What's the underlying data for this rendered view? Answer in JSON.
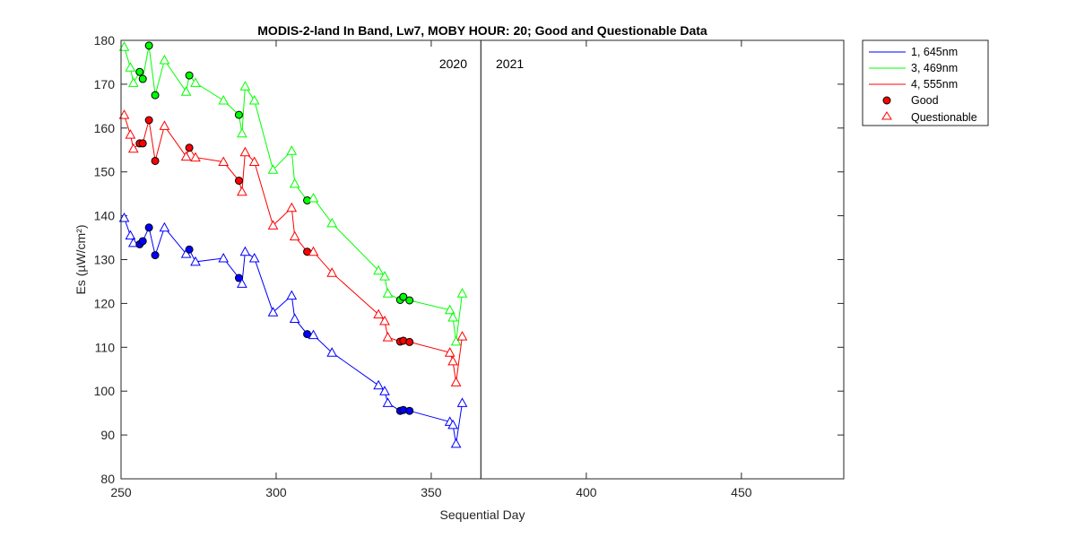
{
  "chart_data": {
    "type": "line",
    "title": "MODIS-2-land In Band,  Lw7, MOBY HOUR: 20;  Good and Questionable Data",
    "xlabel": "Sequential Day",
    "ylabel": "Es (µW/cm²)",
    "xlim": [
      250,
      483
    ],
    "ylim": [
      80,
      180
    ],
    "xticks": [
      250,
      300,
      350,
      400,
      450
    ],
    "yticks": [
      80,
      90,
      100,
      110,
      120,
      130,
      140,
      150,
      160,
      170,
      180
    ],
    "year_divider_x": 366,
    "year_labels": [
      "2020",
      "2021"
    ],
    "legend": {
      "location": "outside-top-right",
      "entries": [
        {
          "label": "1, 645nm",
          "kind": "line",
          "color": "#0000ff"
        },
        {
          "label": "3, 469nm",
          "kind": "line",
          "color": "#00ff00"
        },
        {
          "label": "4, 555nm",
          "kind": "line",
          "color": "#ff0000"
        },
        {
          "label": "Good",
          "kind": "filled-circle",
          "color": "#ff0000"
        },
        {
          "label": "Questionable",
          "kind": "open-triangle",
          "color": "#ff0000"
        }
      ]
    },
    "series": [
      {
        "name": "1, 645nm",
        "color": "#0000ff",
        "x": [
          251,
          253,
          254,
          256,
          257,
          259,
          261,
          264,
          271,
          272,
          274,
          283,
          288,
          289,
          290,
          293,
          299,
          305,
          306,
          310,
          312,
          318,
          333,
          335,
          336,
          340,
          341,
          343,
          356,
          357,
          358,
          360
        ],
        "y": [
          139.5,
          135.5,
          133.8,
          133.5,
          134.2,
          137.3,
          131.0,
          137.3,
          131.3,
          132.3,
          129.5,
          130.3,
          125.8,
          124.5,
          131.8,
          130.3,
          118.0,
          121.8,
          116.5,
          113.0,
          112.8,
          108.8,
          101.3,
          100.0,
          97.3,
          95.5,
          95.7,
          95.5,
          93.0,
          92.3,
          88.0,
          97.3
        ],
        "quality": [
          "q",
          "q",
          "q",
          "g",
          "g",
          "g",
          "g",
          "q",
          "q",
          "g",
          "q",
          "q",
          "g",
          "q",
          "q",
          "q",
          "q",
          "q",
          "q",
          "g",
          "q",
          "q",
          "q",
          "q",
          "q",
          "g",
          "g",
          "g",
          "q",
          "q",
          "q",
          "q"
        ]
      },
      {
        "name": "3, 469nm",
        "color": "#00ff00",
        "x": [
          251,
          253,
          254,
          256,
          257,
          259,
          261,
          264,
          271,
          272,
          274,
          283,
          288,
          289,
          290,
          293,
          299,
          305,
          306,
          310,
          312,
          318,
          333,
          335,
          336,
          340,
          341,
          343,
          356,
          357,
          358,
          360
        ],
        "y": [
          178.5,
          173.8,
          170.3,
          172.8,
          171.2,
          178.8,
          167.5,
          175.5,
          168.3,
          172.0,
          170.3,
          166.3,
          163.0,
          158.8,
          169.5,
          166.3,
          150.5,
          154.8,
          147.3,
          143.5,
          144.0,
          138.3,
          127.5,
          126.2,
          122.3,
          120.8,
          121.5,
          120.7,
          118.5,
          116.8,
          111.3,
          122.3
        ],
        "quality": [
          "q",
          "q",
          "q",
          "g",
          "g",
          "g",
          "g",
          "q",
          "q",
          "g",
          "q",
          "q",
          "g",
          "q",
          "q",
          "q",
          "q",
          "q",
          "q",
          "g",
          "q",
          "q",
          "q",
          "q",
          "q",
          "g",
          "g",
          "g",
          "q",
          "q",
          "q",
          "q"
        ]
      },
      {
        "name": "4, 555nm",
        "color": "#ff0000",
        "x": [
          251,
          253,
          254,
          256,
          257,
          259,
          261,
          264,
          271,
          272,
          274,
          283,
          288,
          289,
          290,
          293,
          299,
          305,
          306,
          310,
          312,
          318,
          333,
          335,
          336,
          340,
          341,
          343,
          356,
          357,
          358,
          360
        ],
        "y": [
          163.0,
          158.5,
          155.3,
          156.5,
          156.5,
          161.8,
          152.5,
          160.5,
          153.5,
          155.5,
          153.3,
          152.3,
          148.0,
          145.5,
          154.5,
          152.3,
          137.8,
          141.8,
          135.3,
          131.8,
          131.8,
          127.0,
          117.5,
          116.0,
          112.3,
          111.3,
          111.5,
          111.2,
          108.8,
          106.8,
          102.0,
          112.5
        ],
        "quality": [
          "q",
          "q",
          "q",
          "g",
          "g",
          "g",
          "g",
          "q",
          "q",
          "g",
          "q",
          "q",
          "g",
          "q",
          "q",
          "q",
          "q",
          "q",
          "q",
          "g",
          "q",
          "q",
          "q",
          "q",
          "q",
          "g",
          "g",
          "g",
          "q",
          "q",
          "q",
          "q"
        ]
      }
    ]
  }
}
